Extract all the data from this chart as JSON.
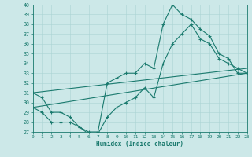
{
  "xlabel": "Humidex (Indice chaleur)",
  "bg_color": "#cce8e8",
  "line_color": "#1a7a6e",
  "grid_color": "#aad4d4",
  "xlim": [
    0,
    23
  ],
  "ylim": [
    27,
    40
  ],
  "xticks": [
    0,
    1,
    2,
    3,
    4,
    5,
    6,
    7,
    8,
    9,
    10,
    11,
    12,
    13,
    14,
    15,
    16,
    17,
    18,
    19,
    20,
    21,
    22,
    23
  ],
  "yticks": [
    27,
    28,
    29,
    30,
    31,
    32,
    33,
    34,
    35,
    36,
    37,
    38,
    39,
    40
  ],
  "curve_upper": {
    "x": [
      0,
      1,
      2,
      3,
      4,
      5,
      6,
      7,
      8,
      9,
      10,
      11,
      12,
      13,
      14,
      15,
      16,
      17,
      18,
      19,
      20,
      21,
      22,
      23
    ],
    "y": [
      31.0,
      30.5,
      29.0,
      29.0,
      28.5,
      27.5,
      27.0,
      27.0,
      32.0,
      32.5,
      33.0,
      33.0,
      34.0,
      33.5,
      38.0,
      40.0,
      39.0,
      38.5,
      37.5,
      36.8,
      35.0,
      34.5,
      33.0,
      33.0
    ]
  },
  "curve_lower": {
    "x": [
      0,
      1,
      2,
      3,
      4,
      5,
      6,
      7,
      8,
      9,
      10,
      11,
      12,
      13,
      14,
      15,
      16,
      17,
      18,
      19,
      20,
      21,
      22,
      23
    ],
    "y": [
      29.5,
      29.0,
      28.0,
      28.0,
      28.0,
      27.5,
      26.8,
      26.8,
      28.5,
      29.5,
      30.0,
      30.5,
      31.5,
      30.5,
      34.0,
      36.0,
      37.0,
      38.0,
      36.5,
      36.0,
      34.5,
      34.0,
      33.5,
      33.0
    ]
  },
  "line1_x": [
    0,
    23
  ],
  "line1_y": [
    29.5,
    33.0
  ],
  "line2_x": [
    0,
    23
  ],
  "line2_y": [
    31.0,
    33.5
  ]
}
